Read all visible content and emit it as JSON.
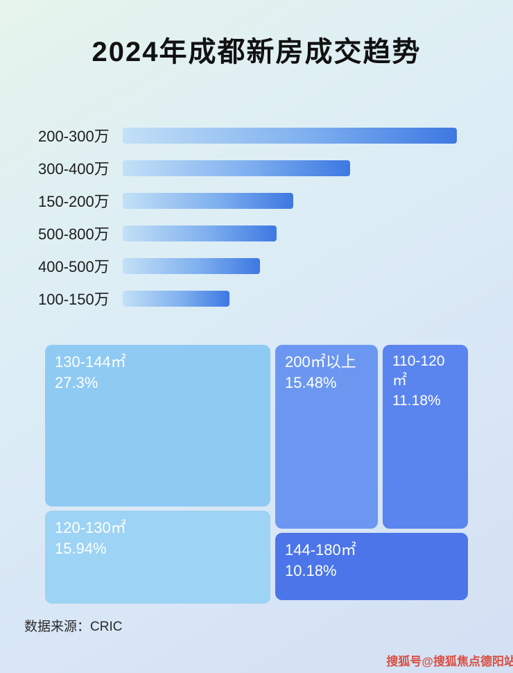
{
  "title": "2024年成都新房成交趋势",
  "source": "数据来源：CRIC",
  "watermark": "搜狐号@搜狐焦点德阳站",
  "colors": {
    "bar_gradient_start": "#c3e0f7",
    "bar_gradient_end": "#3d78e2",
    "background_top": "#e6f4ec",
    "background_bottom": "#d3e0f3",
    "title_color": "#111111",
    "watermark_color": "#d94f43"
  },
  "chart_data": [
    {
      "type": "bar",
      "orientation": "horizontal",
      "title": "2024年成都新房成交趋势",
      "categories": [
        "200-300万",
        "300-400万",
        "150-200万",
        "500-800万",
        "400-500万",
        "100-150万"
      ],
      "values": [
        100,
        68,
        51,
        46,
        41,
        32
      ],
      "value_note": "relative bar lengths estimated from pixels; no numeric axis shown",
      "xlabel": "",
      "ylabel": "",
      "grid": false,
      "legend": false
    },
    {
      "type": "treemap",
      "title": "",
      "items": [
        {
          "label": "130-144㎡",
          "value": 27.3,
          "display": "27.3%",
          "color": "#8fcaf3"
        },
        {
          "label": "120-130㎡",
          "value": 15.94,
          "display": "15.94%",
          "color": "#9dd3f4"
        },
        {
          "label": "200㎡以上",
          "value": 15.48,
          "display": "15.48%",
          "color": "#6b97f0"
        },
        {
          "label": "110-120㎡",
          "value": 11.18,
          "display": "11.18%",
          "color": "#5a84ee"
        },
        {
          "label": "144-180㎡",
          "value": 10.18,
          "display": "10.18%",
          "color": "#4b75e8"
        }
      ]
    }
  ]
}
